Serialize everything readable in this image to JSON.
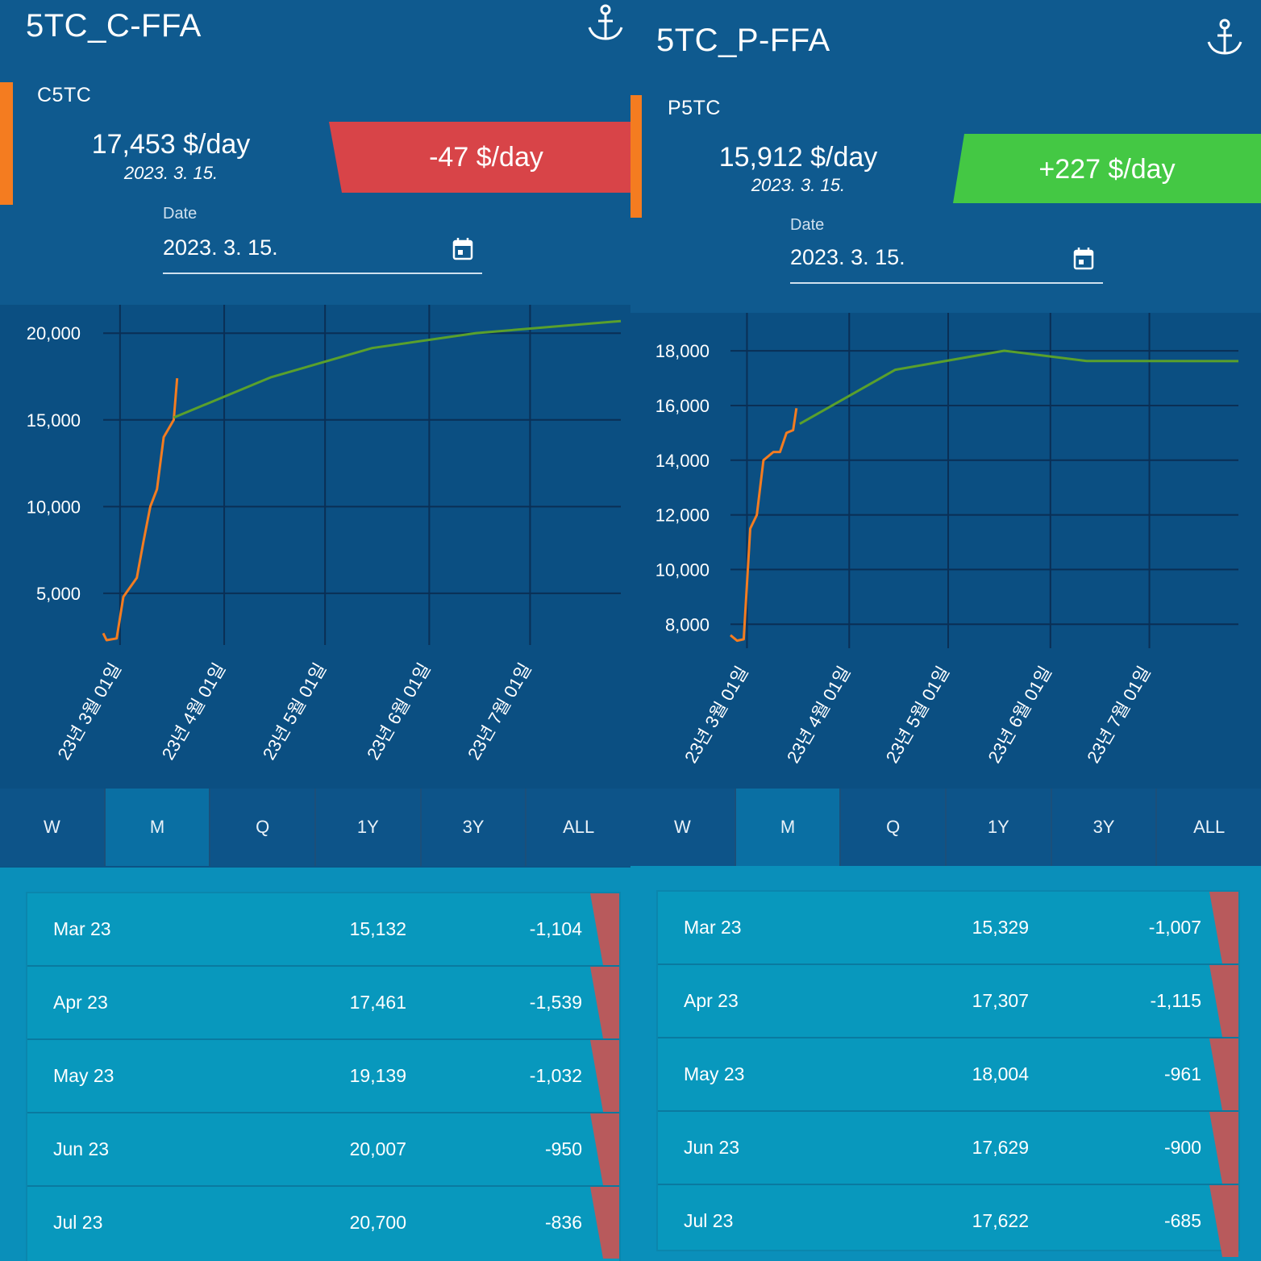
{
  "colors": {
    "accent_orange": "#f47c20",
    "down_red": "#d84448",
    "up_green": "#44c844",
    "bg_blue": "#0f5a8f",
    "table_blue": "#0898bd"
  },
  "panels": [
    {
      "title": "5TC_C-FFA",
      "icon": "anchor-icon",
      "code": "C5TC",
      "price": "17,453 $/day",
      "price_date": "2023. 3. 15.",
      "change": "-47 $/day",
      "change_direction": "down",
      "date_label": "Date",
      "date_value": "2023. 3. 15.",
      "tabs": [
        "W",
        "M",
        "Q",
        "1Y",
        "3Y",
        "ALL"
      ],
      "active_tab": "M",
      "rows": [
        {
          "month": "Mar 23",
          "value": "15,132",
          "change": "-1,104"
        },
        {
          "month": "Apr 23",
          "value": "17,461",
          "change": "-1,539"
        },
        {
          "month": "May 23",
          "value": "19,139",
          "change": "-1,032"
        },
        {
          "month": "Jun 23",
          "value": "20,007",
          "change": "-950"
        },
        {
          "month": "Jul 23",
          "value": "20,700",
          "change": "-836"
        }
      ]
    },
    {
      "title": "5TC_P-FFA",
      "icon": "anchor-icon",
      "code": "P5TC",
      "price": "15,912 $/day",
      "price_date": "2023. 3. 15.",
      "change": "+227 $/day",
      "change_direction": "up",
      "date_label": "Date",
      "date_value": "2023. 3. 15.",
      "tabs": [
        "W",
        "M",
        "Q",
        "1Y",
        "3Y",
        "ALL"
      ],
      "active_tab": "M",
      "rows": [
        {
          "month": "Mar 23",
          "value": "15,329",
          "change": "-1,007"
        },
        {
          "month": "Apr 23",
          "value": "17,307",
          "change": "-1,115"
        },
        {
          "month": "May 23",
          "value": "18,004",
          "change": "-961"
        },
        {
          "month": "Jun 23",
          "value": "17,629",
          "change": "-900"
        },
        {
          "month": "Jul 23",
          "value": "17,622",
          "change": "-685"
        }
      ]
    }
  ],
  "chart_data": [
    {
      "type": "line",
      "x_ticks": [
        "23년 3월 01일",
        "23년 4월 01일",
        "23년 5월 01일",
        "23년 6월 01일",
        "23년 7월 01일"
      ],
      "y_ticks": [
        5000,
        10000,
        15000,
        20000
      ],
      "ylim": [
        2300,
        20800
      ],
      "xlim": [
        "2023-02-24",
        "2023-07-28"
      ],
      "grid": true,
      "series": [
        {
          "color": "#f47c20",
          "points": [
            [
              "2023-02-24",
              2700
            ],
            [
              "2023-02-25",
              2300
            ],
            [
              "2023-02-28",
              2400
            ],
            [
              "2023-03-02",
              4800
            ],
            [
              "2023-03-06",
              5900
            ],
            [
              "2023-03-08",
              8000
            ],
            [
              "2023-03-10",
              10000
            ],
            [
              "2023-03-12",
              11000
            ],
            [
              "2023-03-14",
              14000
            ],
            [
              "2023-03-17",
              15000
            ],
            [
              "2023-03-18",
              17400
            ]
          ]
        },
        {
          "color": "#5aa02c",
          "points": [
            [
              "2023-03-17",
              15132
            ],
            [
              "2023-04-15",
              17461
            ],
            [
              "2023-05-15",
              19139
            ],
            [
              "2023-06-15",
              20007
            ],
            [
              "2023-07-28",
              20700
            ]
          ]
        }
      ]
    },
    {
      "type": "line",
      "x_ticks": [
        "23년 3월 01일",
        "23년 4월 01일",
        "23년 5월 01일",
        "23년 6월 01일",
        "23년 7월 01일"
      ],
      "y_ticks": [
        8000,
        10000,
        12000,
        14000,
        16000,
        18000
      ],
      "ylim": [
        7300,
        18800
      ],
      "xlim": [
        "2023-02-24",
        "2023-07-28"
      ],
      "grid": true,
      "series": [
        {
          "color": "#f47c20",
          "points": [
            [
              "2023-02-24",
              7600
            ],
            [
              "2023-02-26",
              7400
            ],
            [
              "2023-02-28",
              7450
            ],
            [
              "2023-03-02",
              11500
            ],
            [
              "2023-03-04",
              12000
            ],
            [
              "2023-03-06",
              14000
            ],
            [
              "2023-03-09",
              14300
            ],
            [
              "2023-03-11",
              14300
            ],
            [
              "2023-03-13",
              15000
            ],
            [
              "2023-03-15",
              15100
            ],
            [
              "2023-03-16",
              15900
            ]
          ]
        },
        {
          "color": "#5aa02c",
          "points": [
            [
              "2023-03-17",
              15329
            ],
            [
              "2023-04-15",
              17307
            ],
            [
              "2023-05-18",
              18004
            ],
            [
              "2023-06-12",
              17629
            ],
            [
              "2023-07-28",
              17622
            ]
          ]
        }
      ]
    }
  ]
}
